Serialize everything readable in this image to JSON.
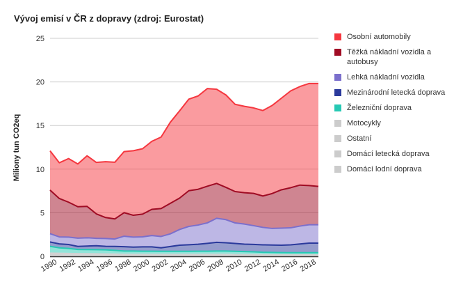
{
  "chart_data": {
    "type": "area",
    "stacked": true,
    "title": "Vývoj emisí v ČR z dopravy (zdroj: Eurostat)",
    "xlabel": "",
    "ylabel": "Miliony tun CO2eq",
    "ylim": [
      0,
      25
    ],
    "yticks": [
      0,
      5,
      10,
      15,
      20,
      25
    ],
    "xticks": [
      1990,
      1992,
      1994,
      1996,
      1998,
      2000,
      2002,
      2004,
      2006,
      2008,
      2010,
      2012,
      2014,
      2016,
      2018
    ],
    "grid": true,
    "legend_position": "right",
    "x": [
      1990,
      1991,
      1992,
      1993,
      1994,
      1995,
      1996,
      1997,
      1998,
      1999,
      2000,
      2001,
      2002,
      2003,
      2004,
      2005,
      2006,
      2007,
      2008,
      2009,
      2010,
      2011,
      2012,
      2013,
      2014,
      2015,
      2016,
      2017,
      2018,
      2019
    ],
    "series": [
      {
        "name": "Domácí lodní doprava",
        "color": "#cccccc",
        "line": false,
        "values": [
          0.05,
          0.05,
          0.05,
          0.05,
          0.05,
          0.05,
          0.05,
          0.05,
          0.04,
          0.04,
          0.04,
          0.04,
          0.04,
          0.04,
          0.04,
          0.04,
          0.04,
          0.04,
          0.04,
          0.04,
          0.03,
          0.03,
          0.03,
          0.03,
          0.03,
          0.03,
          0.03,
          0.03,
          0.03,
          0.03
        ]
      },
      {
        "name": "Domácí letecká doprava",
        "color": "#cccccc",
        "line": false,
        "values": [
          0.05,
          0.05,
          0.05,
          0.05,
          0.05,
          0.05,
          0.05,
          0.05,
          0.05,
          0.05,
          0.05,
          0.05,
          0.05,
          0.05,
          0.05,
          0.05,
          0.05,
          0.05,
          0.05,
          0.05,
          0.04,
          0.04,
          0.04,
          0.04,
          0.04,
          0.04,
          0.04,
          0.04,
          0.04,
          0.04
        ]
      },
      {
        "name": "Ostatní",
        "color": "#cccccc",
        "line": false,
        "values": [
          0.15,
          0.14,
          0.13,
          0.12,
          0.12,
          0.12,
          0.11,
          0.11,
          0.1,
          0.1,
          0.1,
          0.1,
          0.1,
          0.1,
          0.1,
          0.1,
          0.1,
          0.1,
          0.1,
          0.1,
          0.09,
          0.09,
          0.09,
          0.08,
          0.08,
          0.08,
          0.08,
          0.08,
          0.08,
          0.08
        ]
      },
      {
        "name": "Motocykly",
        "color": "#cccccc",
        "line": false,
        "values": [
          0.2,
          0.19,
          0.18,
          0.17,
          0.16,
          0.15,
          0.14,
          0.13,
          0.12,
          0.12,
          0.12,
          0.12,
          0.12,
          0.12,
          0.12,
          0.12,
          0.12,
          0.12,
          0.12,
          0.12,
          0.12,
          0.11,
          0.11,
          0.1,
          0.1,
          0.1,
          0.1,
          0.1,
          0.1,
          0.1
        ]
      },
      {
        "name": "Železniční doprava",
        "color": "#26c9b4",
        "line": true,
        "values": [
          0.7,
          0.55,
          0.5,
          0.4,
          0.4,
          0.4,
          0.4,
          0.35,
          0.3,
          0.3,
          0.28,
          0.28,
          0.27,
          0.27,
          0.27,
          0.27,
          0.28,
          0.28,
          0.3,
          0.3,
          0.3,
          0.28,
          0.25,
          0.22,
          0.2,
          0.18,
          0.17,
          0.17,
          0.17,
          0.17
        ]
      },
      {
        "name": "Mezinárodní letecká doprava",
        "color": "#2b3a9c",
        "line": true,
        "values": [
          0.5,
          0.45,
          0.45,
          0.35,
          0.4,
          0.45,
          0.4,
          0.45,
          0.5,
          0.45,
          0.5,
          0.5,
          0.4,
          0.55,
          0.7,
          0.75,
          0.8,
          0.9,
          1.0,
          0.95,
          0.9,
          0.85,
          0.85,
          0.85,
          0.85,
          0.85,
          0.9,
          1.0,
          1.1,
          1.1
        ]
      },
      {
        "name": "Lehká nákladní vozidla",
        "color": "#7b6fcc",
        "line": true,
        "values": [
          0.95,
          0.8,
          0.85,
          0.95,
          0.95,
          0.85,
          0.9,
          0.85,
          1.2,
          1.15,
          1.15,
          1.3,
          1.3,
          1.45,
          1.8,
          2.1,
          2.2,
          2.35,
          2.75,
          2.65,
          2.35,
          2.3,
          2.15,
          2.0,
          1.9,
          1.95,
          1.95,
          2.05,
          2.1,
          2.1
        ]
      },
      {
        "name": "Těžká nákladní vozidla a autobusy",
        "color": "#a00c24",
        "line": true,
        "values": [
          5.0,
          4.4,
          4.0,
          3.6,
          3.6,
          2.8,
          2.4,
          2.3,
          2.7,
          2.5,
          2.6,
          3.0,
          3.2,
          3.5,
          3.6,
          4.1,
          4.1,
          4.2,
          4.0,
          3.7,
          3.6,
          3.6,
          3.7,
          3.6,
          4.0,
          4.4,
          4.6,
          4.7,
          4.5,
          4.4
        ]
      },
      {
        "name": "Osobní automobily",
        "color": "#f5373f",
        "line": true,
        "values": [
          4.5,
          4.1,
          5.0,
          4.9,
          5.8,
          5.9,
          6.4,
          6.5,
          7.0,
          7.4,
          7.5,
          7.8,
          8.2,
          9.3,
          10.0,
          10.5,
          10.7,
          11.2,
          10.8,
          10.6,
          10.0,
          9.9,
          9.8,
          9.8,
          10.1,
          10.5,
          11.1,
          11.3,
          11.7,
          11.8
        ]
      }
    ]
  },
  "legend": [
    {
      "label": "Osobní automobily",
      "color": "#f5373f"
    },
    {
      "label": "Těžká nákladní vozidla a autobusy",
      "color": "#a00c24"
    },
    {
      "label": "Lehká nákladní vozidla",
      "color": "#7b6fcc"
    },
    {
      "label": "Mezinárodní letecká doprava",
      "color": "#2b3a9c"
    },
    {
      "label": "Železniční doprava",
      "color": "#26c9b4"
    },
    {
      "label": "Motocykly",
      "color": "#cccccc"
    },
    {
      "label": "Ostatní",
      "color": "#cccccc"
    },
    {
      "label": "Domácí letecká doprava",
      "color": "#cccccc"
    },
    {
      "label": "Domácí lodní doprava",
      "color": "#cccccc"
    }
  ]
}
